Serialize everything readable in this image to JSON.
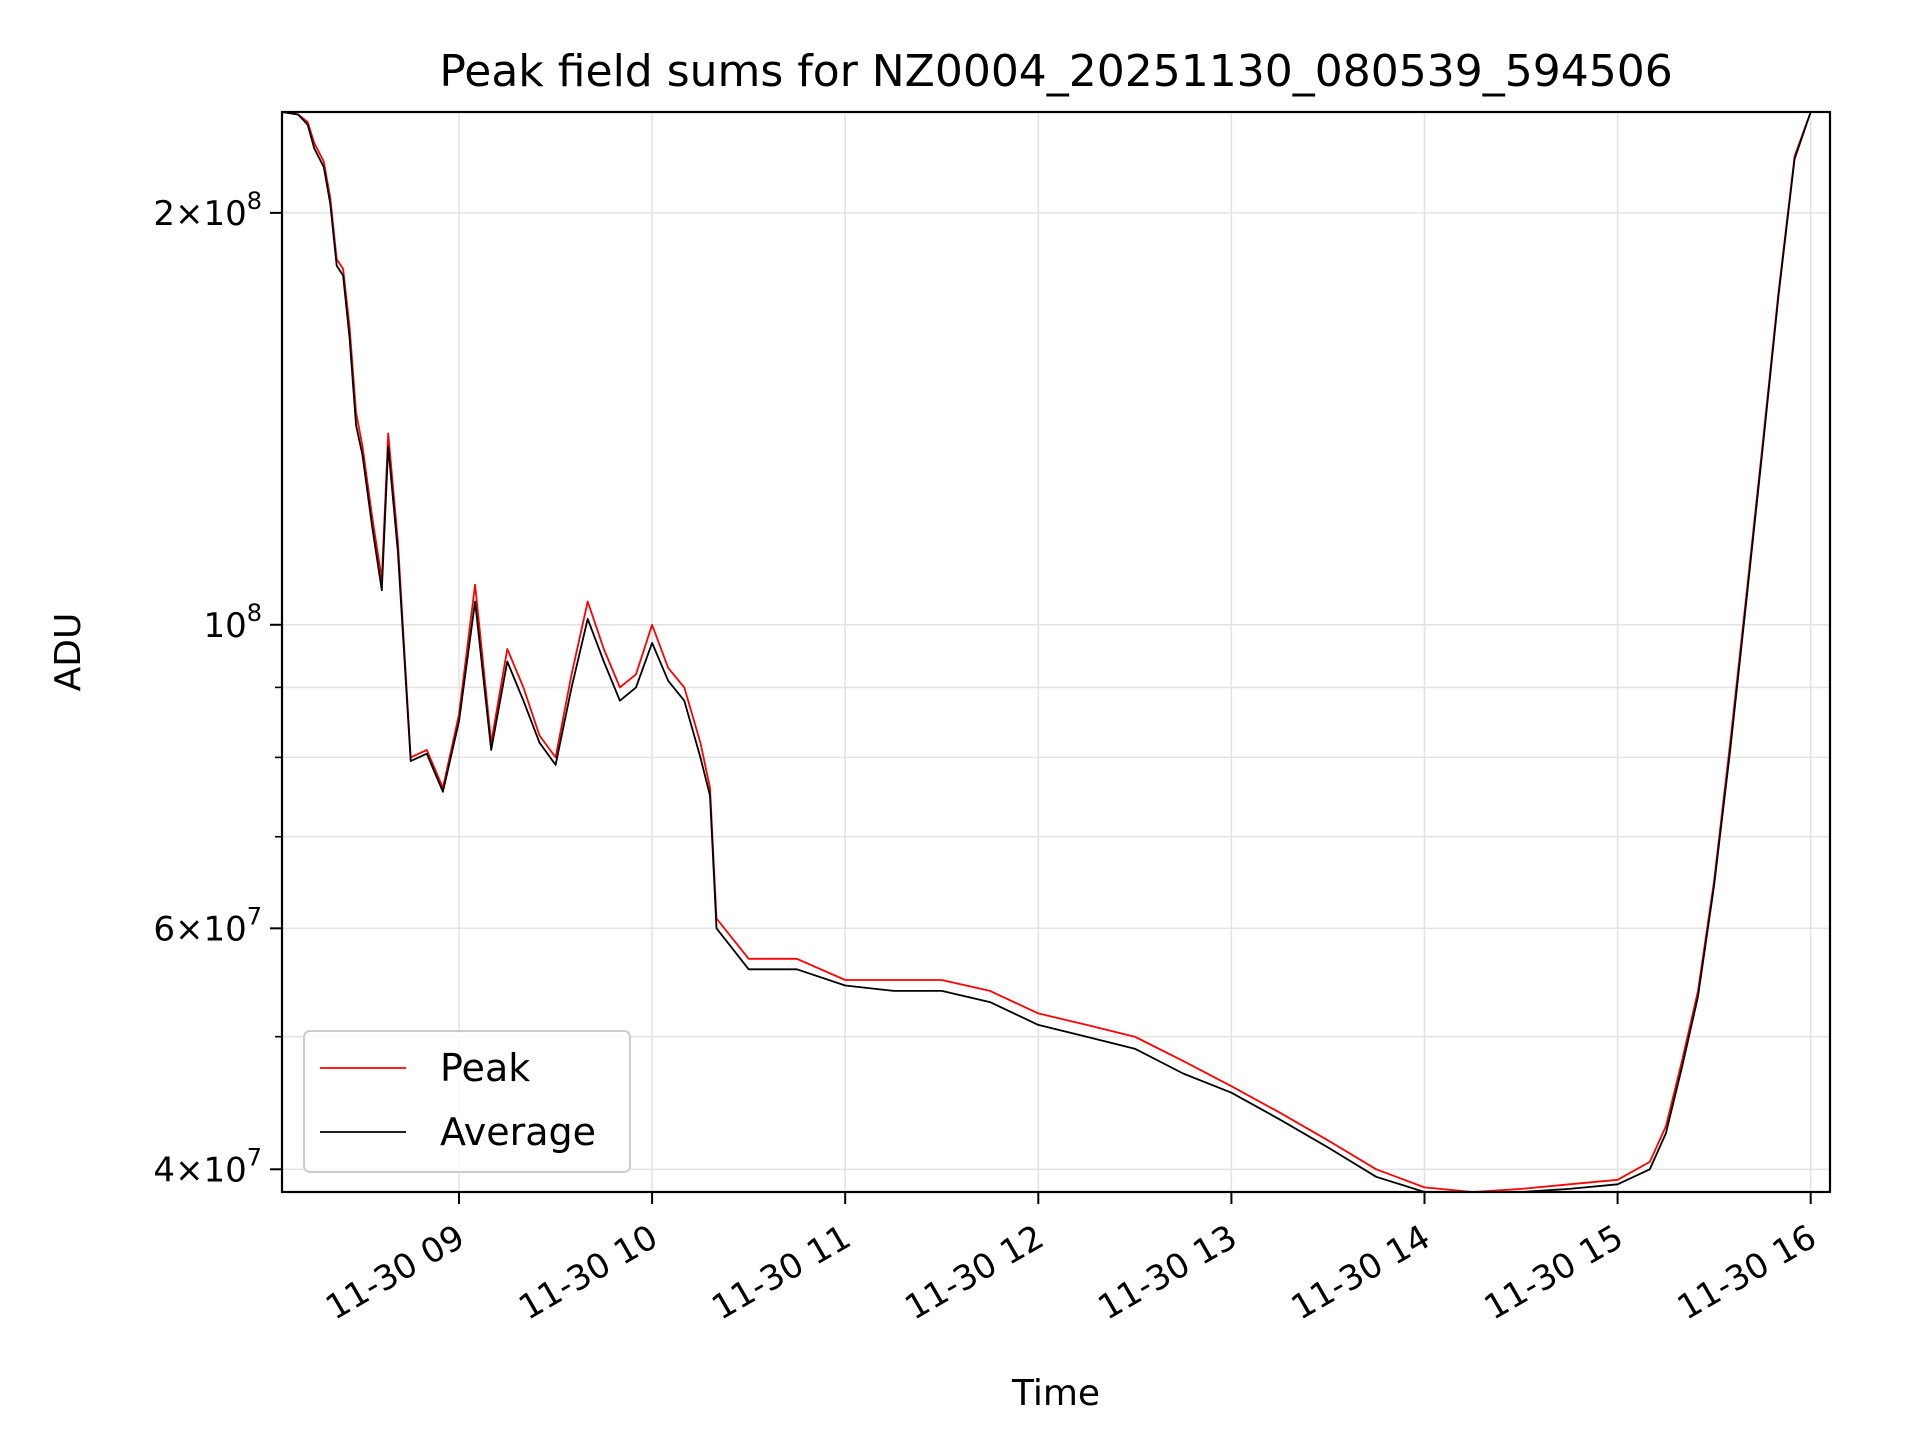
{
  "chart_data": {
    "type": "line",
    "title": "Peak field sums for NZ0004_20251130_080539_594506",
    "xlabel": "Time",
    "ylabel": "ADU",
    "yscale": "log",
    "grid": true,
    "legend_position": "lower-left",
    "xlim": [
      "2025-11-30 08:05",
      "2025-11-30 16:06"
    ],
    "ylim": [
      38500000,
      237000000
    ],
    "x_ticks": [
      {
        "value": "2025-11-30 09:00",
        "label": "11-30 09"
      },
      {
        "value": "2025-11-30 10:00",
        "label": "11-30 10"
      },
      {
        "value": "2025-11-30 11:00",
        "label": "11-30 11"
      },
      {
        "value": "2025-11-30 12:00",
        "label": "11-30 12"
      },
      {
        "value": "2025-11-30 13:00",
        "label": "11-30 13"
      },
      {
        "value": "2025-11-30 14:00",
        "label": "11-30 14"
      },
      {
        "value": "2025-11-30 15:00",
        "label": "11-30 15"
      },
      {
        "value": "2025-11-30 16:00",
        "label": "11-30 16"
      }
    ],
    "y_major_ticks": [
      {
        "value": 40000000,
        "mantissa": "4",
        "exp": "7"
      },
      {
        "value": 60000000,
        "mantissa": "6",
        "exp": "7"
      },
      {
        "value": 100000000,
        "mantissa": "",
        "exp": "8"
      },
      {
        "value": 200000000,
        "mantissa": "2",
        "exp": "8"
      }
    ],
    "y_minor_ticks": [
      50000000,
      70000000,
      80000000,
      90000000
    ],
    "x": [
      "08:05",
      "08:10",
      "08:13",
      "08:15",
      "08:18",
      "08:20",
      "08:22",
      "08:24",
      "08:26",
      "08:28",
      "08:30",
      "08:33",
      "08:36",
      "08:38",
      "08:41",
      "08:45",
      "08:50",
      "08:55",
      "09:00",
      "09:05",
      "09:10",
      "09:15",
      "09:20",
      "09:25",
      "09:30",
      "09:35",
      "09:40",
      "09:45",
      "09:50",
      "09:55",
      "10:00",
      "10:05",
      "10:10",
      "10:15",
      "10:18",
      "10:20",
      "10:30",
      "10:45",
      "11:00",
      "11:15",
      "11:30",
      "11:45",
      "12:00",
      "12:15",
      "12:30",
      "12:45",
      "13:00",
      "13:15",
      "13:30",
      "13:45",
      "14:00",
      "14:15",
      "14:30",
      "14:45",
      "15:00",
      "15:10",
      "15:15",
      "15:20",
      "15:25",
      "15:30",
      "15:35",
      "15:40",
      "15:45",
      "15:50",
      "15:55",
      "16:00",
      "16:06"
    ],
    "series": [
      {
        "name": "Peak",
        "color": "#ff0000",
        "values": [
          237000000,
          236000000,
          233000000,
          225000000,
          218000000,
          205000000,
          185000000,
          182000000,
          165000000,
          143000000,
          135000000,
          120000000,
          108000000,
          138000000,
          115000000,
          80000000,
          81000000,
          76000000,
          86000000,
          107000000,
          82000000,
          96000000,
          90000000,
          83000000,
          80000000,
          92000000,
          104000000,
          96000000,
          90000000,
          92000000,
          100000000,
          93000000,
          90000000,
          82000000,
          76000000,
          61000000,
          57000000,
          57000000,
          55000000,
          55000000,
          55000000,
          54000000,
          52000000,
          51000000,
          50000000,
          48000000,
          46000000,
          44000000,
          42000000,
          40000000,
          38800000,
          38500000,
          38700000,
          39000000,
          39300000,
          40500000,
          43000000,
          48000000,
          54000000,
          65000000,
          82000000,
          105000000,
          135000000,
          175000000,
          220000000,
          237000000,
          237000000
        ]
      },
      {
        "name": "Average",
        "color": "#000000",
        "values": [
          237000000,
          236000000,
          232000000,
          223000000,
          216000000,
          203000000,
          183000000,
          180000000,
          162000000,
          140000000,
          133000000,
          118000000,
          106000000,
          135000000,
          113000000,
          79500000,
          80500000,
          75500000,
          85000000,
          104000000,
          81000000,
          94000000,
          88000000,
          82000000,
          79000000,
          90000000,
          101000000,
          94000000,
          88000000,
          90000000,
          97000000,
          91000000,
          88000000,
          80000000,
          75000000,
          60000000,
          56000000,
          56000000,
          54500000,
          54000000,
          54000000,
          53000000,
          51000000,
          50000000,
          49000000,
          47000000,
          45500000,
          43500000,
          41500000,
          39500000,
          38300000,
          38200000,
          38400000,
          38700000,
          39000000,
          40000000,
          42500000,
          47500000,
          53500000,
          64500000,
          81000000,
          104000000,
          134000000,
          174000000,
          219000000,
          237000000,
          237000000
        ]
      }
    ]
  }
}
